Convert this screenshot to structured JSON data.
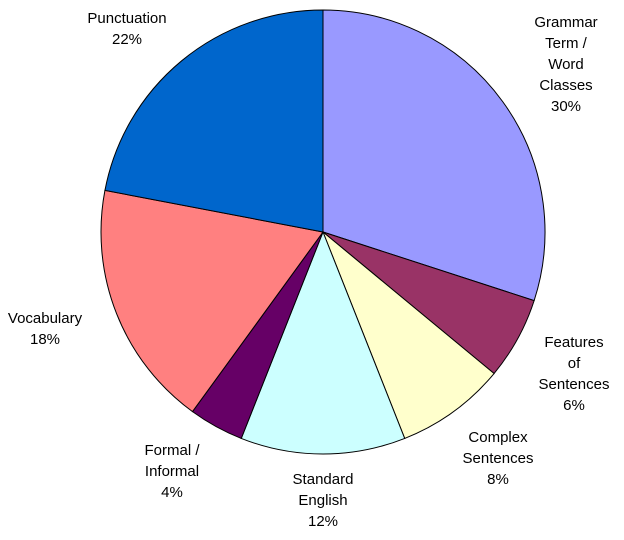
{
  "chart_data": {
    "type": "pie",
    "categories": [
      "Grammar\nTerm / Word\nClasses",
      "Features of\nSentences",
      "Complex\nSentences",
      "Standard\nEnglish",
      "Formal /\nInformal",
      "Vocabulary",
      "Punctuation"
    ],
    "values": [
      30,
      6,
      8,
      12,
      4,
      18,
      22
    ],
    "value_labels": [
      "30%",
      "6%",
      "8%",
      "12%",
      "4%",
      "18%",
      "22%"
    ],
    "colors": [
      "#9999ff",
      "#993366",
      "#ffffcc",
      "#ccffff",
      "#660066",
      "#ff8080",
      "#0066cc"
    ]
  }
}
